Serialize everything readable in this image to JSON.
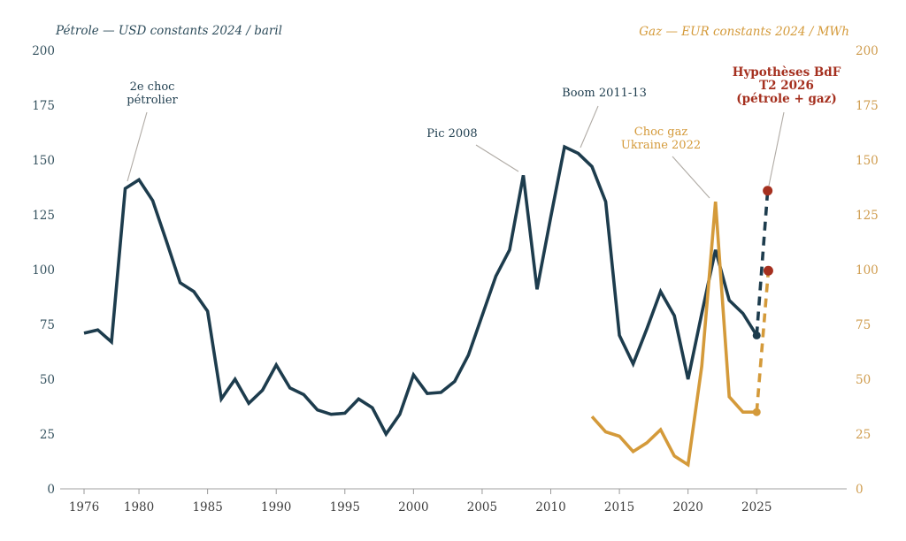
{
  "page": {
    "background": "#ffffff"
  },
  "titles": {
    "left": "Pétrole — USD constants 2024 / baril",
    "right": "Gaz — EUR constants 2024 / MWh"
  },
  "colors": {
    "oil": "#1d3c4d",
    "gas": "#d49a3a",
    "hypothesis": "#a5301f",
    "axis_line": "#b3b3b3",
    "tick_mark": "#999999",
    "leader_line": "#b0aba5",
    "x_tick_text": "#3f3f3f",
    "left_tick_text": "#35525f",
    "right_tick_text": "#cf9c4e",
    "left_title_text": "#2d4c5b",
    "right_title_text": "#d49a3a"
  },
  "chart_data": {
    "type": "line",
    "title": "",
    "xlabel": "",
    "ylabel_left": "Pétrole — USD constants 2024 / baril",
    "ylabel_right": "Gaz — EUR constants 2024 / MWh",
    "xlim": [
      1974.3,
      2031.6
    ],
    "ylim": [
      0,
      200
    ],
    "grid": false,
    "legend_position": "none",
    "x_ticks": [
      1976,
      1980,
      1985,
      1990,
      1995,
      2000,
      2005,
      2010,
      2015,
      2020,
      2025
    ],
    "y_ticks_left": [
      0,
      25,
      50,
      75,
      100,
      125,
      150,
      175,
      200
    ],
    "y_ticks_right": [
      0,
      25,
      50,
      75,
      100,
      125,
      150,
      175,
      200
    ],
    "series": [
      {
        "key": "petrole",
        "name": "Pétrole — USD constants 2024 / baril",
        "color_key": "oil",
        "axis": "left",
        "start_year": 1976,
        "values": [
          71,
          72.5,
          67,
          137,
          141,
          131.5,
          113,
          94,
          90,
          81,
          41,
          50,
          39,
          45,
          56.5,
          46,
          43,
          36,
          34,
          34.5,
          41,
          37,
          25,
          34,
          52,
          43.5,
          44,
          49,
          61,
          79,
          97,
          109,
          143,
          91,
          124,
          156,
          153,
          147,
          131,
          70,
          57,
          73,
          90,
          79,
          50,
          80,
          109,
          86,
          80,
          70
        ]
      },
      {
        "key": "gaz",
        "name": "Gaz — EUR constants 2024 / MWh",
        "color_key": "gas",
        "axis": "right",
        "start_year": 2013,
        "values": [
          33,
          26,
          24,
          17,
          21,
          27,
          15,
          11,
          56,
          131,
          42,
          35,
          35
        ]
      }
    ],
    "projections": [
      {
        "series": "petrole",
        "color_key": "oil",
        "points": [
          [
            2025,
            70
          ],
          [
            2025.8,
            136
          ]
        ]
      },
      {
        "series": "gaz",
        "color_key": "gas",
        "points": [
          [
            2025,
            35
          ],
          [
            2025.85,
            99.5
          ]
        ]
      }
    ],
    "end_markers": [
      {
        "series": "petrole",
        "color_key": "oil",
        "year": 2025,
        "value": 70
      },
      {
        "series": "gaz",
        "color_key": "gas",
        "year": 2025,
        "value": 35
      }
    ],
    "hypothesis_markers": [
      {
        "series": "petrole",
        "year": 2025.8,
        "value": 136
      },
      {
        "series": "gaz",
        "year": 2025.85,
        "value": 99.5
      }
    ],
    "annotations": [
      {
        "id": "choc-petrolier",
        "lines": [
          "2e choc",
          "pétrolier"
        ],
        "color_key": "oil",
        "bold": false,
        "cx": 172,
        "top": 91,
        "leader": [
          166,
          127,
          144,
          205
        ]
      },
      {
        "id": "pic-2008",
        "lines": [
          "Pic 2008"
        ],
        "color_key": "oil",
        "bold": false,
        "cx": 511,
        "top": 144,
        "leader": [
          538,
          164,
          586,
          194
        ]
      },
      {
        "id": "boom-2011-13",
        "lines": [
          "Boom 2011-13"
        ],
        "color_key": "oil",
        "bold": false,
        "cx": 683,
        "top": 98,
        "leader": [
          676,
          120,
          656,
          167
        ]
      },
      {
        "id": "choc-gaz-ukraine",
        "lines": [
          "Choc gaz",
          "Ukraine 2022"
        ],
        "color_key": "gas",
        "bold": false,
        "cx": 747,
        "top": 142,
        "leader": [
          760,
          177,
          802,
          224
        ]
      },
      {
        "id": "hypotheses-bdf",
        "lines": [
          "Hypothèses BdF",
          "T2 2026",
          "(pétrole + gaz)"
        ],
        "color_key": "hypothesis",
        "bold": true,
        "cx": 889,
        "top": 75,
        "leader": [
          886,
          127,
          869,
          210
        ]
      }
    ]
  }
}
